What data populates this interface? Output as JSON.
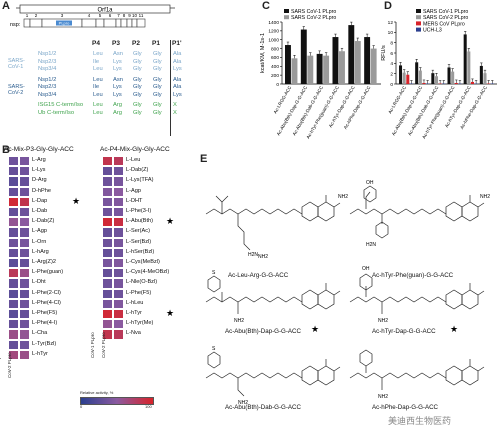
{
  "panels": {
    "a": "A",
    "b": "B",
    "c": "C",
    "d": "D",
    "e": "E"
  },
  "panelA": {
    "top_label": "Orf1a",
    "nsp_label": "nsp:",
    "nsp_numbers": [
      "1",
      "2",
      "3",
      "4",
      "5",
      "6",
      "7",
      "8",
      "9",
      "10",
      "11"
    ],
    "plpro": "PLpro",
    "positions": [
      "P4",
      "P3",
      "P2",
      "P1",
      "P1'"
    ],
    "groups": [
      {
        "name": "SARS-CoV-1",
        "color": "#7aa6c9",
        "rows": [
          {
            "name": "Nsp1/2",
            "res": [
              "Leu",
              "Asn",
              "Gly",
              "Gly",
              "Ala"
            ]
          },
          {
            "name": "Nsp2/3",
            "res": [
              "Ile",
              "Lys",
              "Gly",
              "Gly",
              "Ala"
            ]
          },
          {
            "name": "Nsp3/4",
            "res": [
              "Leu",
              "Lys",
              "Gly",
              "Gly",
              "Lys"
            ]
          }
        ]
      },
      {
        "name": "SARS-CoV-2",
        "color": "#2b5d8f",
        "rows": [
          {
            "name": "Nsp1/2",
            "res": [
              "Leu",
              "Asn",
              "Gly",
              "Gly",
              "Ala"
            ]
          },
          {
            "name": "Nsp2/3",
            "res": [
              "Ile",
              "Lys",
              "Gly",
              "Gly",
              "Ala"
            ]
          },
          {
            "name": "Nsp3/4",
            "res": [
              "Leu",
              "Lys",
              "Gly",
              "Gly",
              "Lys"
            ]
          }
        ]
      },
      {
        "name": "",
        "color": "#3fa34d",
        "rows": [
          {
            "name": "ISG15 C-term/Iso",
            "res": [
              "Leu",
              "Arg",
              "Gly",
              "Gly",
              "X"
            ]
          },
          {
            "name": "Ub C-term/Iso",
            "res": [
              "Leu",
              "Arg",
              "Gly",
              "Gly",
              "X"
            ]
          }
        ]
      }
    ]
  },
  "panelB": {
    "left_title": "Ac-Mix-P3-Gly-Gly-ACC",
    "right_title": "Ac-P4-Mix-Gly-Gly-ACC",
    "left_rows": [
      "L-Arg",
      "L-Lys",
      "D-Arg",
      "D-hPhe",
      "L-Dap",
      "L-Dab",
      "L-Dab(Z)",
      "L-Agp",
      "L-Orn",
      "L-hArg",
      "L-Arg(Z)2",
      "L-Phe(guan)",
      "L-Dht",
      "L-Phe(2-Cl)",
      "L-Phe(4-Cl)",
      "L-Phe(F5)",
      "L-Phe(4-I)",
      "L-Cha",
      "L-Tyr(Bzl)",
      "L-hTyr"
    ],
    "right_rows": [
      "L-Leu",
      "L-Dab(Z)",
      "L-Lys(TFA)",
      "L-Agp",
      "L-DHT",
      "L-Phe(3-I)",
      "L-Abu(Bth)",
      "L-Ser(Ac)",
      "L-Ser(Bzl)",
      "L-hSer(Bzl)",
      "L-Cys(MeBzl)",
      "L-Cys(4-MeOBzl)",
      "L-Nle(O-Bzl)",
      "L-Phe(F5)",
      "L-hLeu",
      "L-hTyr",
      "L-hTyr(Me)",
      "L-Nva"
    ],
    "left_stars": [
      4
    ],
    "right_stars": [
      6,
      15
    ],
    "left_cols": [
      "CoV-1 PLpro",
      "CoV-2 PLpro"
    ],
    "right_cols": [
      "CoV-1 PLpro",
      "CoV-2 PLpro"
    ],
    "left_values": [
      [
        0.35,
        0.4
      ],
      [
        0.3,
        0.35
      ],
      [
        0.25,
        0.3
      ],
      [
        0.3,
        0.35
      ],
      [
        0.95,
        0.85
      ],
      [
        0.3,
        0.35
      ],
      [
        0.55,
        0.5
      ],
      [
        0.3,
        0.35
      ],
      [
        0.35,
        0.4
      ],
      [
        0.3,
        0.35
      ],
      [
        0.25,
        0.3
      ],
      [
        0.8,
        0.6
      ],
      [
        0.3,
        0.35
      ],
      [
        0.25,
        0.3
      ],
      [
        0.3,
        0.35
      ],
      [
        0.25,
        0.3
      ],
      [
        0.3,
        0.35
      ],
      [
        0.6,
        0.55
      ],
      [
        0.3,
        0.35
      ],
      [
        0.65,
        0.6
      ]
    ],
    "right_values": [
      [
        0.85,
        0.8
      ],
      [
        0.3,
        0.35
      ],
      [
        0.35,
        0.4
      ],
      [
        0.45,
        0.5
      ],
      [
        0.4,
        0.45
      ],
      [
        0.35,
        0.4
      ],
      [
        0.95,
        0.9
      ],
      [
        0.3,
        0.35
      ],
      [
        0.35,
        0.4
      ],
      [
        0.3,
        0.35
      ],
      [
        0.4,
        0.45
      ],
      [
        0.3,
        0.35
      ],
      [
        0.35,
        0.4
      ],
      [
        0.3,
        0.35
      ],
      [
        0.4,
        0.45
      ],
      [
        0.95,
        0.9
      ],
      [
        0.55,
        0.5
      ],
      [
        0.85,
        0.8
      ]
    ],
    "legend_title": "Relative activity, %",
    "legend_min": "0",
    "legend_max": "100"
  },
  "chart_data": [
    {
      "type": "bar",
      "ylabel": "kcat/KM, M-1s-1",
      "yticks": [
        0,
        200,
        400,
        600,
        800,
        1000,
        1200,
        1400
      ],
      "ylim": [
        0,
        1400
      ],
      "categories": [
        "Ac-LRGG-ACC",
        "Ac-Abu(Bth)-Dap-G-G-ACC",
        "Ac-Abu(Bth)-Dab-G-G-ACC",
        "Ac-hTyr-Phe(guan)-G-G-ACC",
        "Ac-hTyr-Dap-G-G-ACC",
        "Ac-hPhe-Dap-G-G-ACC"
      ],
      "series": [
        {
          "name": "SARS CoV-1 PLpro",
          "color": "#111111",
          "values": [
            880,
            1230,
            680,
            1060,
            1330,
            1060
          ]
        },
        {
          "name": "SARS CoV-2 PLpro",
          "color": "#9a9a9a",
          "values": [
            580,
            640,
            640,
            740,
            970,
            800
          ]
        }
      ],
      "legend": "top-left"
    },
    {
      "type": "bar",
      "ylabel": "RFU/s",
      "yticks": [
        0,
        2,
        4,
        6,
        8,
        10,
        12
      ],
      "ylim": [
        0,
        12
      ],
      "categories": [
        "Ac-LRGG-ACC",
        "Ac-Abu(Bth)-Dap-G-G-ACC",
        "Ac-Abu(Bth)-Dab-G-G-ACC",
        "Ac-hTyr-Phe(guan)-G-G-ACC",
        "Ac-hTyr-Dap-G-G-ACC",
        "Ac-hPhe-Dap-G-G-ACC"
      ],
      "series": [
        {
          "name": "SARS CoV-1 PLpro",
          "color": "#111111",
          "values": [
            3.6,
            4.2,
            2.1,
            3.2,
            9.6,
            3.5
          ]
        },
        {
          "name": "SARS CoV-2 PLpro",
          "color": "#9a9a9a",
          "values": [
            2.2,
            2.6,
            1.5,
            2.4,
            6.3,
            2.1
          ]
        },
        {
          "name": "MERS CoV PLpro",
          "color": "#d8232a",
          "values": [
            1.8,
            0.2,
            0.1,
            0.2,
            0.4,
            0.1
          ]
        },
        {
          "name": "UCH-L3",
          "color": "#2b3f8f",
          "values": [
            0.1,
            0.1,
            0.1,
            0.1,
            0.1,
            0.1
          ]
        }
      ],
      "legend": "top-right"
    }
  ],
  "panelE": {
    "compounds": [
      {
        "label": "Ac-Leu-Arg-G-G-ACC",
        "star": ""
      },
      {
        "label": "Ac-hTyr-Phe(guan)-G-G-ACC",
        "star": ""
      },
      {
        "label": "Ac-Abu(Bth)-Dap-G-G-ACC",
        "star": "★"
      },
      {
        "label": "Ac-hTyr-Dap-G-G-ACC",
        "star": "★"
      },
      {
        "label": "Ac-Abu(Bth)-Dab-G-G-ACC",
        "star": ""
      },
      {
        "label": "Ac-hPhe-Dap-G-G-ACC",
        "star": ""
      }
    ],
    "atoms": {
      "o": "O",
      "n": "N",
      "h": "H",
      "nh2": "NH2",
      "s": "S",
      "hn": "HN",
      "h2n": "H2N",
      "oh": "OH"
    }
  },
  "watermark": "美迪西生物医药",
  "star_glyph": "★"
}
